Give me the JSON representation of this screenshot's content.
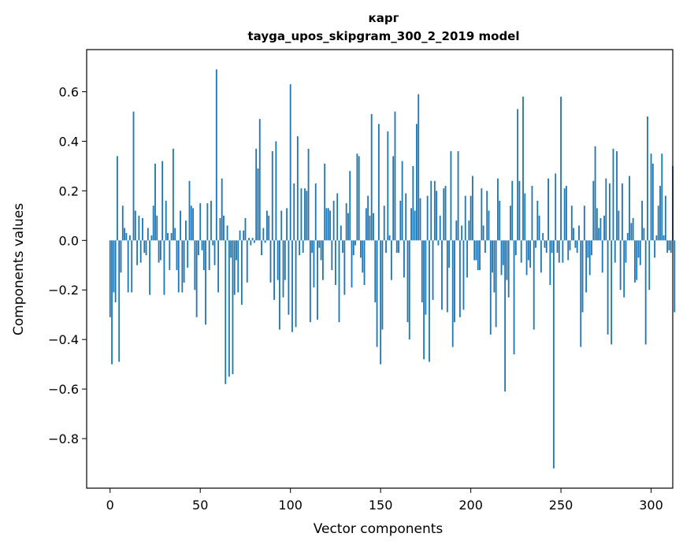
{
  "chart_data": {
    "type": "bar",
    "title": "карг",
    "subtitle": "tayga_upos_skipgram_300_2_2019 model",
    "xlabel": "Vector components",
    "ylabel": "Components values",
    "xlim": [
      -13,
      312
    ],
    "ylim": [
      -1.0,
      0.77
    ],
    "xticks": [
      0,
      50,
      100,
      150,
      200,
      250,
      300
    ],
    "xtick_labels": [
      "0",
      "50",
      "100",
      "150",
      "200",
      "250",
      "300"
    ],
    "yticks": [
      0.6,
      0.4,
      0.2,
      0.0,
      -0.2,
      -0.4,
      -0.6,
      -0.8
    ],
    "ytick_labels": [
      "0.6",
      "0.4",
      "0.2",
      "0.0",
      "−0.2",
      "−0.4",
      "−0.6",
      "−0.8"
    ],
    "bar_color": "#1f77b4",
    "values": [
      -0.31,
      -0.5,
      -0.21,
      -0.25,
      0.34,
      -0.49,
      -0.13,
      0.14,
      0.05,
      0.03,
      -0.21,
      0.02,
      -0.21,
      0.52,
      0.12,
      -0.1,
      0.1,
      -0.09,
      0.09,
      -0.05,
      -0.06,
      0.05,
      -0.22,
      0.02,
      0.14,
      0.31,
      0.1,
      -0.09,
      -0.08,
      0.32,
      -0.22,
      0.16,
      0.03,
      -0.12,
      0.03,
      0.37,
      0.05,
      -0.12,
      -0.21,
      0.12,
      -0.21,
      -0.17,
      0.08,
      -0.11,
      0.24,
      0.14,
      0.13,
      -0.2,
      -0.31,
      -0.06,
      0.15,
      -0.04,
      -0.12,
      -0.34,
      0.15,
      -0.12,
      0.16,
      -0.02,
      -0.1,
      0.69,
      -0.21,
      0.09,
      0.25,
      0.1,
      -0.58,
      0.06,
      -0.55,
      -0.07,
      -0.54,
      -0.22,
      -0.08,
      -0.21,
      0.04,
      -0.26,
      0.04,
      0.09,
      -0.17,
      0.01,
      -0.02,
      0.01,
      -0.01,
      0.37,
      0.29,
      0.49,
      -0.06,
      0.05,
      -0.01,
      0.12,
      0.1,
      -0.17,
      0.36,
      -0.24,
      0.4,
      -0.16,
      -0.36,
      0.12,
      -0.23,
      -0.16,
      0.13,
      -0.3,
      0.63,
      -0.37,
      0.23,
      -0.35,
      0.42,
      -0.06,
      0.21,
      -0.05,
      0.21,
      0.2,
      0.37,
      -0.33,
      -0.05,
      -0.19,
      0.23,
      -0.32,
      -0.03,
      -0.08,
      -0.16,
      0.31,
      0.13,
      0.13,
      0.12,
      -0.12,
      0.16,
      -0.18,
      0.19,
      -0.33,
      0.06,
      -0.05,
      -0.22,
      0.15,
      0.11,
      0.28,
      -0.19,
      -0.06,
      -0.02,
      0.35,
      0.34,
      -0.07,
      -0.13,
      -0.18,
      0.13,
      0.18,
      0.1,
      0.51,
      0.11,
      -0.25,
      -0.43,
      0.47,
      -0.5,
      -0.36,
      0.14,
      -0.05,
      0.44,
      0.02,
      -0.16,
      0.34,
      0.52,
      -0.05,
      -0.05,
      0.16,
      0.32,
      -0.15,
      0.19,
      -0.33,
      -0.4,
      0.13,
      0.3,
      0.12,
      0.47,
      0.59,
      0.17,
      -0.25,
      -0.48,
      -0.3,
      0.18,
      -0.49,
      0.24,
      -0.24,
      0.24,
      0.2,
      -0.02,
      0.1,
      -0.28,
      0.21,
      0.22,
      -0.29,
      -0.11,
      0.36,
      -0.43,
      -0.33,
      0.08,
      0.36,
      -0.31,
      0.06,
      -0.28,
      0.18,
      -0.15,
      0.08,
      0.18,
      0.26,
      -0.08,
      -0.08,
      -0.12,
      -0.12,
      0.21,
      0.06,
      -0.05,
      0.2,
      0.12,
      -0.38,
      -0.13,
      -0.21,
      -0.35,
      0.25,
      0.16,
      -0.14,
      -0.1,
      -0.61,
      -0.16,
      -0.23,
      0.14,
      0.24,
      -0.46,
      -0.06,
      0.53,
      0.24,
      -0.09,
      0.58,
      0.19,
      -0.14,
      -0.08,
      -0.11,
      0.22,
      -0.36,
      -0.03,
      0.16,
      0.1,
      -0.13,
      0.03,
      -0.03,
      -0.05,
      0.25,
      -0.18,
      -0.05,
      -0.92,
      0.27,
      -0.05,
      -0.09,
      0.58,
      -0.09,
      0.21,
      0.22,
      -0.08,
      -0.04,
      0.14,
      0.05,
      -0.03,
      -0.05,
      0.06,
      -0.43,
      -0.29,
      0.14,
      -0.21,
      -0.07,
      -0.14,
      -0.06,
      0.24,
      0.38,
      0.13,
      0.05,
      0.09,
      -0.13,
      0.1,
      0.25,
      -0.38,
      0.23,
      -0.42,
      0.37,
      -0.09,
      0.36,
      0.12,
      -0.2,
      0.23,
      -0.23,
      -0.09,
      0.03,
      0.26,
      0.07,
      0.09,
      -0.17,
      -0.16,
      -0.07,
      -0.1,
      0.16,
      0.05,
      -0.42,
      0.5,
      -0.2,
      0.35,
      0.31,
      -0.07,
      0.02,
      0.14,
      0.22,
      0.35,
      0.02,
      0.18,
      -0.05,
      -0.04,
      -0.05,
      0.3,
      -0.29
    ]
  }
}
